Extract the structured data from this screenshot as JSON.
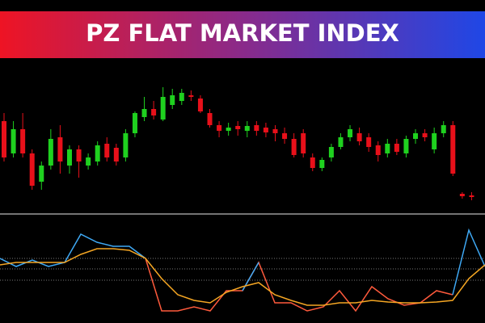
{
  "chart_data": [
    {
      "type": "candlestick",
      "title": "PZ FLAT MARKET INDEX",
      "open": [
        110,
        70,
        100,
        70,
        35,
        55,
        90,
        55,
        75,
        55,
        60,
        82,
        77,
        65,
        95,
        115,
        125,
        112,
        130,
        135,
        142,
        138,
        120,
        105,
        98,
        104,
        98,
        105,
        102,
        100,
        95,
        88,
        95,
        65,
        52,
        65,
        78,
        90,
        95,
        90,
        80,
        70,
        82,
        70,
        88,
        95,
        75,
        95,
        105,
        20,
        18
      ],
      "high": [
        120,
        110,
        120,
        75,
        60,
        100,
        105,
        80,
        80,
        70,
        85,
        90,
        82,
        100,
        122,
        140,
        135,
        152,
        150,
        150,
        148,
        142,
        125,
        110,
        108,
        110,
        110,
        110,
        108,
        105,
        102,
        95,
        100,
        70,
        65,
        82,
        95,
        105,
        102,
        95,
        85,
        88,
        88,
        92,
        100,
        100,
        102,
        110,
        110,
        22,
        22
      ],
      "low": [
        60,
        65,
        65,
        25,
        25,
        50,
        45,
        45,
        40,
        50,
        55,
        60,
        55,
        60,
        90,
        110,
        112,
        110,
        125,
        130,
        135,
        120,
        102,
        90,
        92,
        92,
        90,
        92,
        90,
        85,
        82,
        65,
        65,
        48,
        48,
        60,
        75,
        85,
        80,
        72,
        60,
        65,
        68,
        65,
        82,
        85,
        70,
        90,
        42,
        14,
        12
      ],
      "close": [
        65,
        100,
        70,
        30,
        55,
        88,
        60,
        75,
        60,
        65,
        80,
        65,
        60,
        95,
        120,
        125,
        117,
        140,
        142,
        145,
        140,
        122,
        105,
        98,
        102,
        100,
        104,
        98,
        96,
        95,
        88,
        68,
        70,
        52,
        62,
        78,
        90,
        100,
        85,
        78,
        68,
        82,
        72,
        88,
        95,
        90,
        95,
        105,
        45,
        17,
        16
      ],
      "up_color": "#1fd11f",
      "down_color": "#e8101a",
      "ylim": [
        0,
        180
      ]
    },
    {
      "type": "line",
      "ylim": [
        0,
        130
      ],
      "levels": [
        80,
        67,
        53
      ],
      "grid": true,
      "series": [
        {
          "color": "#ff5a3c",
          "values": [
            null,
            null,
            null,
            null,
            null,
            null,
            null,
            null,
            null,
            80,
            15,
            15,
            20,
            15,
            40,
            40,
            75,
            25,
            25,
            15,
            20,
            40,
            15,
            45,
            30,
            22,
            25,
            40,
            35,
            null,
            null
          ]
        },
        {
          "color": "#3fa9f5",
          "values": [
            80,
            70,
            78,
            70,
            75,
            110,
            100,
            95,
            95,
            80,
            null,
            null,
            null,
            null,
            null,
            40,
            75,
            null,
            null,
            null,
            null,
            null,
            null,
            null,
            null,
            null,
            null,
            null,
            35,
            115,
            70
          ]
        },
        {
          "color": "#f5a623",
          "values": [
            72,
            75,
            75,
            75,
            75,
            85,
            92,
            92,
            90,
            80,
            55,
            35,
            28,
            25,
            38,
            45,
            50,
            35,
            28,
            22,
            22,
            25,
            25,
            28,
            26,
            25,
            25,
            26,
            28,
            55,
            72
          ]
        }
      ]
    }
  ]
}
